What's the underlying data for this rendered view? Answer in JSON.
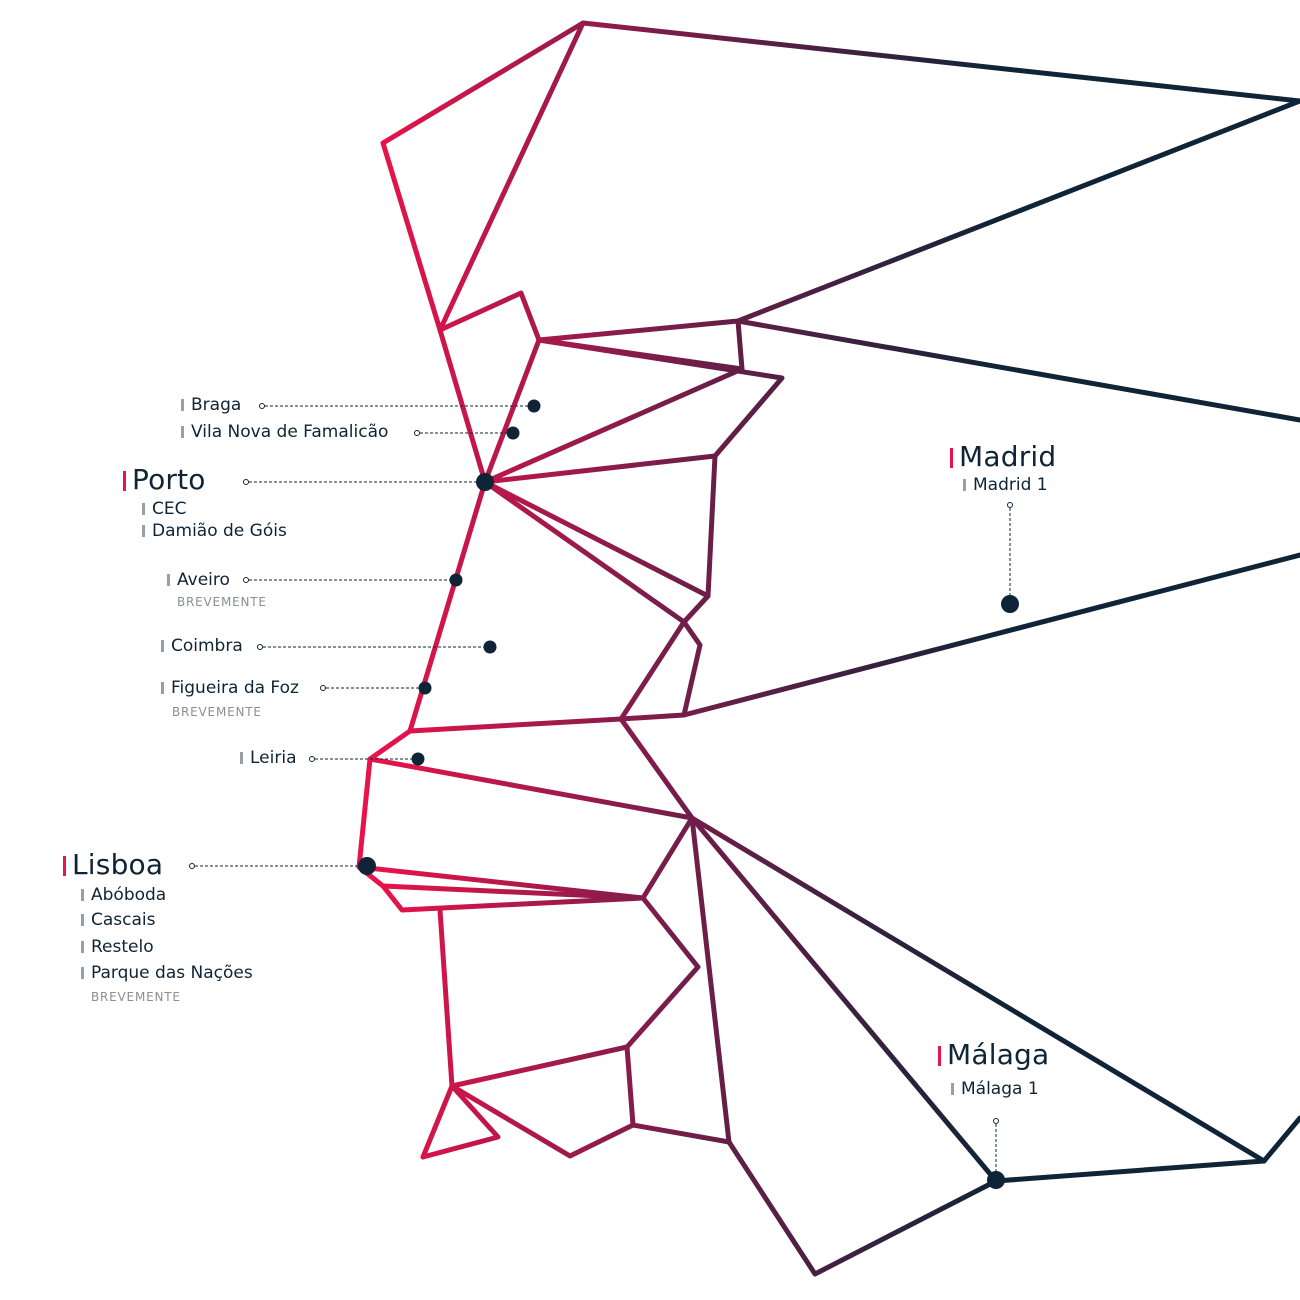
{
  "colors": {
    "accent": "#e8134a",
    "navy": "#0f2436",
    "marker_bar": "#9a9fa6",
    "soon_text": "#8a8f96"
  },
  "cities": {
    "porto": {
      "name": "Porto",
      "schools": [
        "CEC",
        "Damião de Góis"
      ]
    },
    "lisboa": {
      "name": "Lisboa",
      "schools": [
        "Abóboda",
        "Cascais",
        "Restelo",
        "Parque das Nações"
      ],
      "status": "BREVEMENTE"
    },
    "madrid": {
      "name": "Madrid",
      "schools": [
        "Madrid 1"
      ]
    },
    "malaga": {
      "name": "Málaga",
      "schools": [
        "Málaga 1"
      ]
    }
  },
  "locations": {
    "braga": {
      "name": "Braga"
    },
    "famalicao": {
      "name": "Vila Nova de Famalicão"
    },
    "aveiro": {
      "name": "Aveiro",
      "status": "BREVEMENTE"
    },
    "coimbra": {
      "name": "Coimbra"
    },
    "figueira": {
      "name": "Figueira da Foz",
      "status": "BREVEMENTE"
    },
    "leiria": {
      "name": "Leiria"
    }
  }
}
